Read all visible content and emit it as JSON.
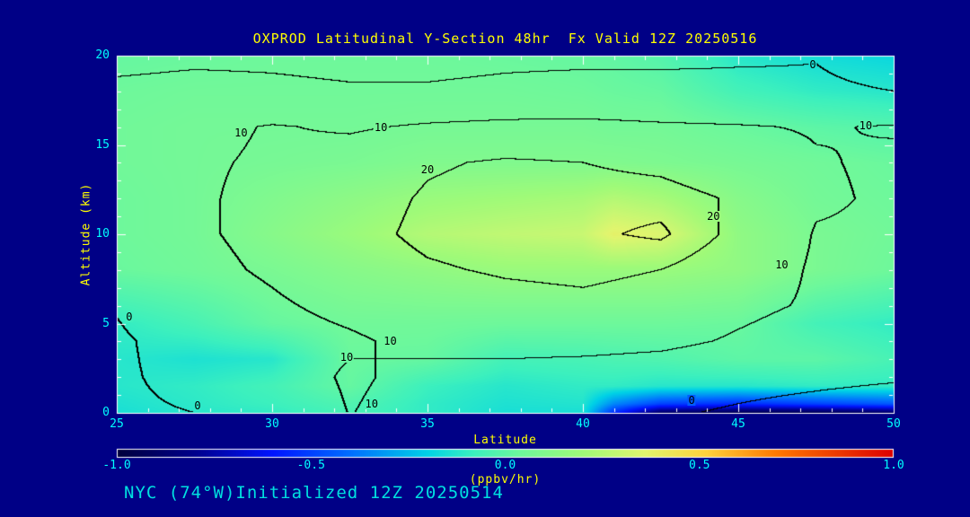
{
  "footer": "NYC (74°W)Initialized 12Z 20250514",
  "colors": {
    "background": "#000086",
    "title_text": "#FFFF00",
    "axis_label_text": "#FFFF00",
    "tick_text": "#00FFFF",
    "footer_text": "#00E0E0",
    "frame": "#FFFFFF",
    "contour_line": "#000000"
  },
  "chart_data": {
    "type": "heatmap",
    "title": "OXPROD Latitudinal Y-Section 48hr  Fx Valid 12Z 20250516",
    "xlabel": "Latitude",
    "ylabel": "Altitude (km)",
    "xlim": [
      25,
      50
    ],
    "ylim": [
      0,
      20
    ],
    "xticks": [
      25,
      30,
      35,
      40,
      45,
      50
    ],
    "yticks": [
      0,
      5,
      10,
      15,
      20
    ],
    "x_minor_step": 1,
    "y_minor_step": 1,
    "grid": false,
    "colorbar": {
      "label": "(ppbv/hr)",
      "min": -1.0,
      "max": 1.0,
      "tick_labels": [
        "-1.0",
        "-0.5",
        "0.0",
        "0.5",
        "1.0"
      ],
      "position": "bottom"
    },
    "colormap": [
      {
        "p": 0.0,
        "c": "#00003C"
      },
      {
        "p": 0.1,
        "c": "#00008C"
      },
      {
        "p": 0.2,
        "c": "#0014FF"
      },
      {
        "p": 0.3,
        "c": "#006EFF"
      },
      {
        "p": 0.4,
        "c": "#00D2E6"
      },
      {
        "p": 0.46,
        "c": "#3CF0BE"
      },
      {
        "p": 0.52,
        "c": "#6EF89B"
      },
      {
        "p": 0.6,
        "c": "#A0FA78"
      },
      {
        "p": 0.68,
        "c": "#E1F56E"
      },
      {
        "p": 0.76,
        "c": "#FFD23C"
      },
      {
        "p": 0.85,
        "c": "#FF7800"
      },
      {
        "p": 1.0,
        "c": "#DC0000"
      }
    ],
    "fill_field": {
      "units": "ppbv/hr",
      "lat": [
        25,
        27.5,
        30,
        32.5,
        35,
        37.5,
        40,
        41,
        42.5,
        45,
        47.5,
        50
      ],
      "alt": [
        0,
        0.5,
        1.5,
        3,
        5,
        8,
        10,
        12,
        14,
        16,
        18,
        20
      ],
      "values": [
        [
          -0.15,
          -0.12,
          -0.1,
          -0.05,
          -0.1,
          -0.15,
          -0.15,
          -0.55,
          -0.9,
          -0.95,
          -0.95,
          -0.9
        ],
        [
          -0.14,
          -0.11,
          -0.08,
          -0.03,
          -0.1,
          -0.14,
          -0.13,
          -0.35,
          -0.5,
          -0.55,
          -0.5,
          -0.45
        ],
        [
          -0.12,
          -0.1,
          -0.06,
          0.02,
          -0.08,
          -0.12,
          -0.1,
          -0.1,
          -0.12,
          -0.12,
          -0.1,
          -0.1
        ],
        [
          -0.12,
          -0.14,
          -0.12,
          0.03,
          0.02,
          -0.06,
          -0.05,
          -0.04,
          -0.03,
          0.0,
          0.0,
          -0.05
        ],
        [
          -0.1,
          -0.05,
          0.02,
          0.05,
          0.05,
          0.04,
          0.04,
          0.04,
          0.04,
          0.03,
          -0.06,
          -0.1
        ],
        [
          0.03,
          0.05,
          0.08,
          0.12,
          0.15,
          0.18,
          0.18,
          0.18,
          0.18,
          0.15,
          0.08,
          0.04
        ],
        [
          0.04,
          0.06,
          0.12,
          0.18,
          0.25,
          0.28,
          0.3,
          0.38,
          0.35,
          0.15,
          0.08,
          0.05
        ],
        [
          0.04,
          0.06,
          0.1,
          0.14,
          0.18,
          0.2,
          0.22,
          0.25,
          0.22,
          0.12,
          0.06,
          0.04
        ],
        [
          0.05,
          0.06,
          0.07,
          0.08,
          0.1,
          0.1,
          0.1,
          0.1,
          0.09,
          0.07,
          0.05,
          0.03
        ],
        [
          0.05,
          0.06,
          0.06,
          0.06,
          0.07,
          0.07,
          0.07,
          0.06,
          0.06,
          0.03,
          0.0,
          -0.02
        ],
        [
          0.04,
          0.05,
          0.05,
          0.05,
          0.05,
          0.05,
          0.04,
          0.03,
          0.02,
          -0.06,
          -0.1,
          -0.12
        ],
        [
          0.02,
          0.03,
          0.04,
          0.04,
          0.04,
          0.03,
          0.02,
          0.01,
          -0.02,
          -0.12,
          -0.16,
          -0.18
        ]
      ]
    },
    "contour_field": {
      "levels": [
        0,
        10,
        20,
        25
      ],
      "lat": [
        25,
        27.5,
        30,
        32.5,
        35,
        37.5,
        40,
        42.5,
        45,
        47.5,
        50
      ],
      "alt": [
        0,
        2,
        4,
        6,
        8,
        10,
        12,
        14,
        16,
        18,
        20
      ],
      "values": [
        [
          -1,
          0,
          4,
          10.2,
          7,
          5,
          3,
          1,
          -1,
          -3,
          -5
        ],
        [
          -1,
          2,
          6,
          11,
          8,
          7,
          6,
          5,
          3,
          2,
          1
        ],
        [
          -1,
          3,
          7,
          9,
          12,
          13,
          13,
          12,
          9,
          6,
          4
        ],
        [
          0.5,
          6,
          9,
          12,
          15,
          17,
          18,
          16,
          12,
          9,
          7
        ],
        [
          5,
          8,
          11,
          15,
          19,
          21,
          22,
          20,
          15,
          9,
          8
        ],
        [
          5,
          9,
          12,
          17,
          22,
          24,
          24,
          26,
          18,
          9.5,
          9
        ],
        [
          6,
          9,
          12,
          16,
          21,
          23,
          23,
          23,
          19,
          11,
          9
        ],
        [
          7,
          9,
          11,
          14,
          19,
          21,
          20,
          18,
          14,
          10.5,
          9
        ],
        [
          6,
          8,
          10.5,
          9,
          11,
          12,
          12,
          11,
          10.5,
          9.5,
          10.5
        ],
        [
          2,
          3,
          2,
          1,
          1,
          2,
          3,
          3,
          2,
          1,
          0
        ],
        [
          -3,
          -2,
          -2,
          -3,
          -3,
          -2,
          -2,
          -2,
          -1,
          -0.3,
          -3
        ]
      ]
    },
    "contour_labels": [
      {
        "level": "0",
        "lat": 47.4,
        "alt": 19.5
      },
      {
        "level": "10",
        "lat": 33.5,
        "alt": 16.0
      },
      {
        "level": "10",
        "lat": 29.0,
        "alt": 15.7
      },
      {
        "level": "10",
        "lat": 49.1,
        "alt": 16.1
      },
      {
        "level": "20",
        "lat": 35.0,
        "alt": 13.6
      },
      {
        "level": "20",
        "lat": 44.2,
        "alt": 11.0
      },
      {
        "level": "10",
        "lat": 46.4,
        "alt": 8.3
      },
      {
        "level": "0",
        "lat": 25.4,
        "alt": 5.4
      },
      {
        "level": "10",
        "lat": 33.8,
        "alt": 4.0
      },
      {
        "level": "10",
        "lat": 32.4,
        "alt": 3.1
      },
      {
        "level": "0",
        "lat": 27.6,
        "alt": 0.4
      },
      {
        "level": "10",
        "lat": 33.2,
        "alt": 0.5
      },
      {
        "level": "0",
        "lat": 43.5,
        "alt": 0.7
      }
    ]
  }
}
